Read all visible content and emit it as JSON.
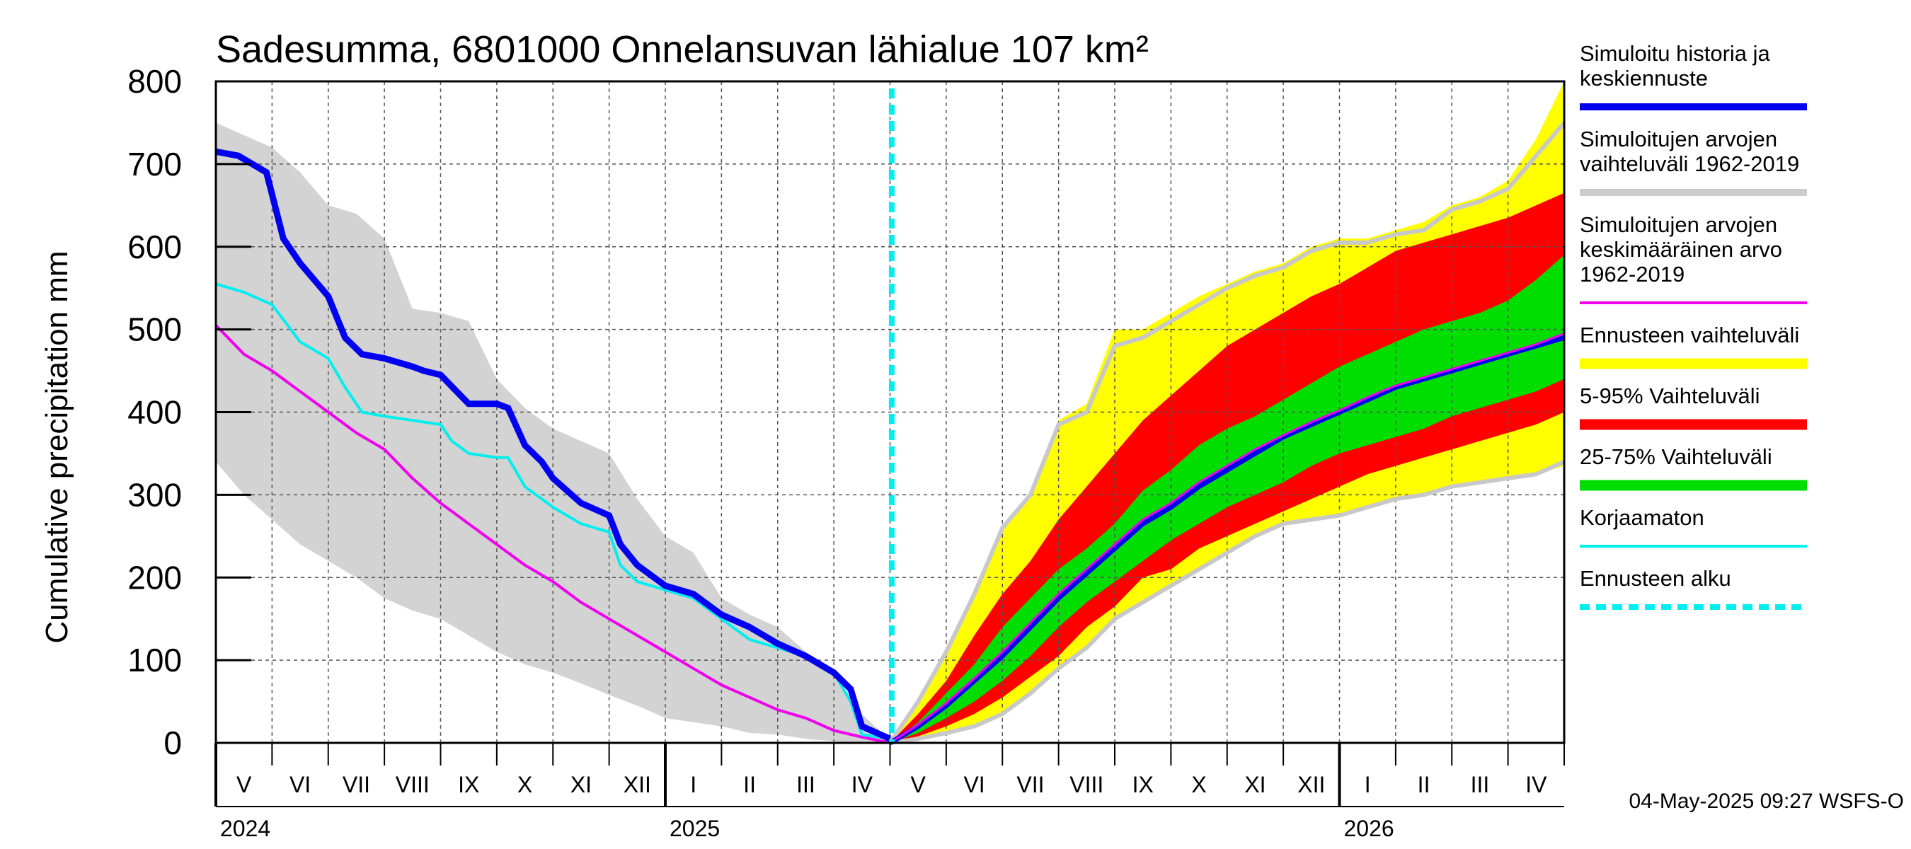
{
  "chart_data": {
    "type": "area",
    "title": "Sadesumma, 6801000 Onnelansuvan lähialue 107 km²",
    "ylabel": "Cumulative precipitation   mm",
    "xlabel": "",
    "ylim": [
      0,
      800
    ],
    "yticks": [
      0,
      100,
      200,
      300,
      400,
      500,
      600,
      700,
      800
    ],
    "grid": true,
    "months": [
      "V",
      "VI",
      "VII",
      "VIII",
      "IX",
      "X",
      "XI",
      "XII",
      "I",
      "II",
      "III",
      "IV",
      "V",
      "VI",
      "VII",
      "VIII",
      "IX",
      "X",
      "XI",
      "XII",
      "I",
      "II",
      "III",
      "IV"
    ],
    "years": [
      "2024",
      "2025",
      "2026"
    ],
    "year_start_month_index": [
      0,
      8,
      20
    ],
    "forecast_start_month": 12.03,
    "legend": [
      {
        "label_lines": [
          "Simuloitu historia ja",
          "keskiennuste"
        ],
        "color": "#0000ee",
        "style": "line-thick"
      },
      {
        "label_lines": [
          "Simuloitujen arvojen",
          "vaihteluväli 1962-2019"
        ],
        "color": "#cccccc",
        "style": "line-thick"
      },
      {
        "label_lines": [
          "Simuloitujen arvojen",
          "keskimääräinen arvo",
          "   1962-2019"
        ],
        "color": "#ee00ee",
        "style": "line"
      },
      {
        "label_lines": [
          "Ennusteen vaihteluväli"
        ],
        "color": "#ffff00",
        "style": "band"
      },
      {
        "label_lines": [
          "5-95% Vaihteluväli"
        ],
        "color": "#ff0000",
        "style": "band"
      },
      {
        "label_lines": [
          "25-75% Vaihteluväli"
        ],
        "color": "#00dd00",
        "style": "band"
      },
      {
        "label_lines": [
          "Korjaamaton"
        ],
        "color": "#00eeee",
        "style": "line"
      },
      {
        "label_lines": [
          "Ennusteen alku"
        ],
        "color": "#00eeee",
        "style": "dashed"
      }
    ],
    "series": {
      "hist_range": {
        "name": "Simuloitujen arvojen vaihteluväli 1962-2019 (historia)",
        "x": [
          0,
          0.5,
          1,
          1.5,
          2,
          2.5,
          3,
          3.5,
          4,
          4.5,
          5,
          5.5,
          6,
          6.5,
          7,
          7.5,
          8,
          8.5,
          9,
          9.5,
          10,
          10.5,
          11,
          11.5,
          12
        ],
        "upper": [
          750,
          735,
          720,
          690,
          650,
          640,
          610,
          525,
          520,
          510,
          440,
          405,
          380,
          365,
          350,
          295,
          250,
          230,
          175,
          155,
          140,
          110,
          80,
          35,
          3
        ],
        "lower": [
          340,
          300,
          270,
          240,
          220,
          200,
          175,
          160,
          150,
          130,
          110,
          95,
          85,
          72,
          58,
          45,
          30,
          25,
          20,
          12,
          10,
          5,
          2,
          0,
          0
        ]
      },
      "forecast_outer": {
        "name": "Ennusteen vaihteluväli",
        "x": [
          12,
          12.5,
          13,
          13.5,
          14,
          14.5,
          15,
          15.5,
          16,
          16.5,
          17,
          17.5,
          18,
          18.5,
          19,
          19.5,
          20,
          20.5,
          21,
          21.5,
          22,
          22.5,
          23,
          23.5,
          24
        ],
        "upper": [
          0,
          50,
          110,
          180,
          260,
          300,
          390,
          410,
          500,
          500,
          520,
          540,
          555,
          570,
          580,
          600,
          610,
          610,
          620,
          630,
          650,
          660,
          680,
          730,
          800
        ],
        "lower": [
          0,
          5,
          12,
          20,
          35,
          60,
          90,
          115,
          150,
          170,
          190,
          210,
          230,
          250,
          265,
          270,
          275,
          285,
          295,
          300,
          310,
          315,
          320,
          325,
          335
        ]
      },
      "forecast_p5_95": {
        "name": "5-95% Vaihteluväli",
        "x": [
          12,
          12.5,
          13,
          13.5,
          14,
          14.5,
          15,
          15.5,
          16,
          16.5,
          17,
          17.5,
          18,
          18.5,
          19,
          19.5,
          20,
          20.5,
          21,
          21.5,
          22,
          22.5,
          23,
          23.5,
          24
        ],
        "upper": [
          0,
          35,
          75,
          130,
          180,
          220,
          270,
          310,
          350,
          390,
          420,
          450,
          480,
          500,
          520,
          540,
          555,
          575,
          595,
          605,
          615,
          625,
          635,
          650,
          665
        ],
        "lower": [
          0,
          8,
          20,
          35,
          55,
          80,
          105,
          140,
          165,
          200,
          210,
          235,
          250,
          265,
          280,
          295,
          310,
          325,
          335,
          345,
          355,
          365,
          375,
          385,
          400
        ]
      },
      "forecast_p25_75": {
        "name": "25-75% Vaihteluväli",
        "x": [
          12,
          12.5,
          13,
          13.5,
          14,
          14.5,
          15,
          15.5,
          16,
          16.5,
          17,
          17.5,
          18,
          18.5,
          19,
          19.5,
          20,
          20.5,
          21,
          21.5,
          22,
          22.5,
          23,
          23.5,
          24
        ],
        "upper": [
          0,
          25,
          60,
          95,
          140,
          175,
          210,
          235,
          265,
          305,
          330,
          360,
          380,
          395,
          415,
          435,
          455,
          470,
          485,
          500,
          510,
          520,
          535,
          560,
          590
        ],
        "lower": [
          0,
          12,
          30,
          50,
          75,
          105,
          140,
          170,
          195,
          220,
          245,
          265,
          285,
          300,
          315,
          335,
          350,
          360,
          370,
          380,
          395,
          405,
          415,
          425,
          440
        ]
      },
      "main_history": {
        "name": "Simuloitu historia ja keskiennuste (historia)",
        "x": [
          0,
          0.4,
          0.9,
          1.2,
          1.5,
          2,
          2.3,
          2.6,
          3,
          3.5,
          3.7,
          4,
          4.5,
          5,
          5.2,
          5.5,
          5.8,
          6,
          6.5,
          7,
          7.2,
          7.5,
          8,
          8.5,
          9,
          9.5,
          10,
          10.5,
          11,
          11.3,
          11.5,
          12
        ],
        "y": [
          715,
          710,
          690,
          610,
          580,
          540,
          490,
          470,
          465,
          455,
          450,
          445,
          410,
          410,
          405,
          360,
          340,
          320,
          290,
          275,
          240,
          215,
          190,
          180,
          155,
          140,
          120,
          105,
          85,
          65,
          20,
          5
        ]
      },
      "korjaamaton": {
        "name": "Korjaamaton",
        "x": [
          0,
          0.5,
          1,
          1.5,
          2,
          2.3,
          2.6,
          3,
          3.5,
          4,
          4.2,
          4.5,
          5,
          5.2,
          5.5,
          6,
          6.5,
          7,
          7.2,
          7.5,
          8,
          8.5,
          9,
          9.5,
          10,
          10.5,
          11,
          11.3,
          11.5,
          12
        ],
        "y": [
          555,
          545,
          530,
          485,
          465,
          430,
          400,
          395,
          390,
          385,
          365,
          350,
          345,
          345,
          310,
          285,
          265,
          255,
          215,
          195,
          185,
          175,
          150,
          125,
          115,
          105,
          85,
          50,
          10,
          5
        ]
      },
      "mean": {
        "name": "Simuloitujen arvojen keskimääräinen arvo 1962-2019 (historia)",
        "x": [
          0,
          0.5,
          1,
          1.5,
          2,
          2.5,
          3,
          3.5,
          4,
          4.5,
          5,
          5.5,
          6,
          6.5,
          7,
          7.5,
          8,
          8.5,
          9,
          9.5,
          10,
          10.5,
          11,
          11.5,
          12
        ],
        "y": [
          505,
          470,
          450,
          425,
          400,
          375,
          355,
          320,
          290,
          265,
          240,
          215,
          195,
          170,
          150,
          130,
          110,
          90,
          70,
          55,
          40,
          30,
          15,
          7,
          0
        ]
      },
      "main_forecast": {
        "name": "Simuloitu historia ja keskiennuste (keskiennuste)",
        "x": [
          12,
          12.5,
          13,
          13.5,
          14,
          14.5,
          15,
          15.5,
          16,
          16.5,
          17,
          17.5,
          18,
          18.5,
          19,
          19.5,
          20,
          20.5,
          21,
          21.5,
          22,
          22.5,
          23,
          23.5,
          24
        ],
        "y": [
          0,
          20,
          45,
          75,
          105,
          140,
          175,
          205,
          235,
          265,
          285,
          310,
          330,
          350,
          370,
          385,
          400,
          415,
          430,
          440,
          450,
          460,
          470,
          480,
          490
        ]
      },
      "mean_forecast": {
        "name": "Simuloitujen arvojen keskimääräinen arvo (ennustejakso)",
        "x": [
          12,
          12.5,
          13,
          13.5,
          14,
          14.5,
          15,
          15.5,
          16,
          16.5,
          17,
          17.5,
          18,
          18.5,
          19,
          19.5,
          20,
          20.5,
          21,
          21.5,
          22,
          22.5,
          23,
          23.5,
          24
        ],
        "y": [
          0,
          22,
          48,
          78,
          110,
          145,
          180,
          210,
          240,
          270,
          290,
          315,
          335,
          355,
          372,
          388,
          402,
          418,
          432,
          442,
          452,
          462,
          472,
          482,
          495
        ]
      },
      "range_forecast": {
        "name": "Simuloitujen arvojen vaihteluväli (ennustejakso)",
        "x": [
          12,
          12.5,
          13,
          13.5,
          14,
          14.5,
          15,
          15.5,
          16,
          16.5,
          17,
          17.5,
          18,
          18.5,
          19,
          19.5,
          20,
          20.5,
          21,
          21.5,
          22,
          22.5,
          23,
          23.5,
          24
        ],
        "upper": [
          0,
          50,
          110,
          180,
          260,
          300,
          385,
          400,
          480,
          490,
          510,
          530,
          550,
          565,
          575,
          595,
          605,
          605,
          615,
          620,
          645,
          655,
          670,
          710,
          750
        ],
        "lower": [
          0,
          5,
          12,
          20,
          35,
          60,
          90,
          115,
          150,
          170,
          190,
          210,
          230,
          250,
          265,
          270,
          275,
          285,
          295,
          300,
          310,
          315,
          320,
          325,
          340
        ]
      }
    }
  },
  "footer": {
    "timestamp": "04-May-2025 09:27 WSFS-O"
  }
}
